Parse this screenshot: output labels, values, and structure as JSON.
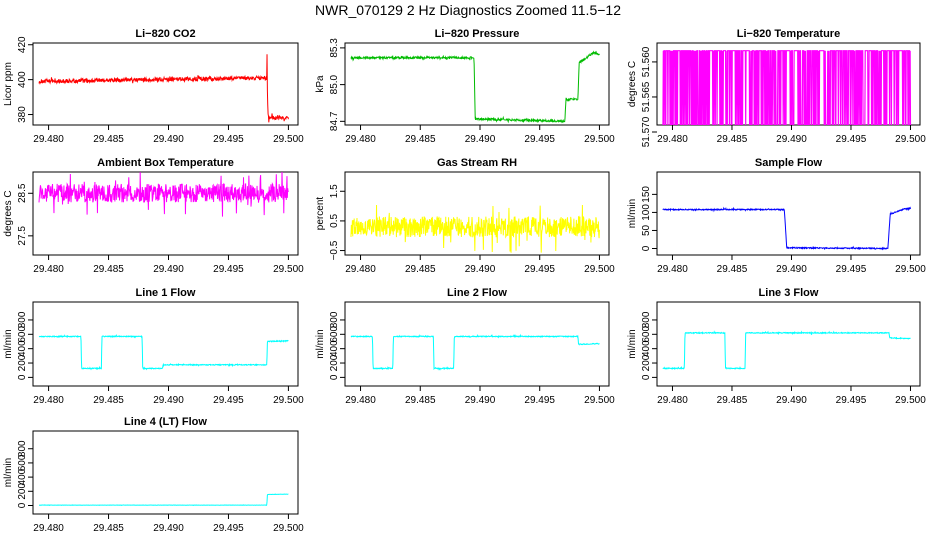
{
  "page_title": "NWR_070129  2 Hz Diagnostics Zoomed 11.5−12",
  "colors": {
    "red": "#ff0000",
    "green": "#00bb00",
    "magenta": "#ff00ff",
    "yellow": "#ffff00",
    "blue": "#0000ff",
    "cyan": "#00ffff"
  },
  "chart_data": [
    {
      "type": "line",
      "title": "Li−820 CO2",
      "ylabel": "Licor ppm",
      "color": "#ff0000",
      "xlim": [
        29.4787,
        29.5008
      ],
      "ylim": [
        374,
        421
      ],
      "xticks": [
        29.48,
        29.485,
        29.49,
        29.495,
        29.5
      ],
      "xtick_labels": [
        "29.480",
        "29.485",
        "29.490",
        "29.495",
        "29.500"
      ],
      "yticks": [
        380,
        400,
        420
      ],
      "ytick_labels": [
        "380",
        "400",
        "420"
      ],
      "style": "noisy",
      "noise": 1.2,
      "series": [
        {
          "x": [
            29.4792,
            29.4982,
            29.49822,
            29.49825,
            29.4983,
            29.49835,
            29.5
          ],
          "y": [
            399,
            401,
            418,
            392,
            380,
            378,
            378
          ]
        }
      ]
    },
    {
      "type": "line",
      "title": "Li−820 Pressure",
      "ylabel": "kPa",
      "color": "#00bb00",
      "xlim": [
        29.4787,
        29.5008
      ],
      "ylim": [
        84.67,
        85.34
      ],
      "xticks": [
        29.48,
        29.485,
        29.49,
        29.495,
        29.5
      ],
      "xtick_labels": [
        "29.480",
        "29.485",
        "29.490",
        "29.495",
        "29.500"
      ],
      "yticks": [
        84.7,
        85.0,
        85.3
      ],
      "ytick_labels": [
        "84.7",
        "85.0",
        "85.3"
      ],
      "style": "noisy",
      "noise": 0.008,
      "series": [
        {
          "x": [
            29.4792,
            29.4895,
            29.4896,
            29.4971,
            29.4972,
            29.4982,
            29.4983,
            29.4995,
            29.5
          ],
          "y": [
            85.22,
            85.22,
            84.72,
            84.7,
            84.88,
            84.88,
            85.18,
            85.26,
            85.25
          ]
        }
      ]
    },
    {
      "type": "line",
      "title": "Li−820 Temperature",
      "ylabel": "degrees C",
      "color": "#ff00ff",
      "xlim": [
        29.4787,
        29.5008
      ],
      "ylim": [
        51.569,
        51.5573
      ],
      "ylim_note": "discrete toggling between two values",
      "xticks": [
        29.48,
        29.485,
        29.49,
        29.495,
        29.5
      ],
      "xtick_labels": [
        "29.480",
        "29.485",
        "29.490",
        "29.495",
        "29.500"
      ],
      "yticks": [
        51.57,
        51.565,
        51.56
      ],
      "ytick_labels": [
        "51.570",
        "51.565",
        "51.560"
      ],
      "style": "toggle",
      "levels": [
        51.5584,
        51.5692
      ],
      "series": [
        {
          "x": [
            29.4792,
            29.5
          ],
          "y": [
            51.5584,
            51.5584
          ]
        }
      ]
    },
    {
      "type": "line",
      "title": "Ambient Box Temperature",
      "ylabel": "degrees C",
      "color": "#ff00ff",
      "xlim": [
        29.4787,
        29.5008
      ],
      "ylim": [
        27.05,
        29.0
      ],
      "xticks": [
        29.48,
        29.485,
        29.49,
        29.495,
        29.5
      ],
      "xtick_labels": [
        "29.480",
        "29.485",
        "29.490",
        "29.495",
        "29.500"
      ],
      "yticks": [
        27.5,
        28.5
      ],
      "ytick_labels": [
        "27.5",
        "28.5"
      ],
      "style": "noisy",
      "noise": 0.22,
      "series": [
        {
          "x": [
            29.4792,
            29.5
          ],
          "y": [
            28.5,
            28.5
          ]
        }
      ]
    },
    {
      "type": "line",
      "title": "Gas Stream RH",
      "ylabel": "percent",
      "color": "#ffff00",
      "xlim": [
        29.4787,
        29.5008
      ],
      "ylim": [
        -0.65,
        2.15
      ],
      "xticks": [
        29.48,
        29.485,
        29.49,
        29.495,
        29.5
      ],
      "xtick_labels": [
        "29.480",
        "29.485",
        "29.490",
        "29.495",
        "29.500"
      ],
      "yticks": [
        -0.5,
        0.5,
        1.5
      ],
      "ytick_labels": [
        "−0.5",
        "0.5",
        "1.5"
      ],
      "style": "noisy",
      "noise": 0.35,
      "series": [
        {
          "x": [
            29.4792,
            29.5
          ],
          "y": [
            0.3,
            0.3
          ]
        }
      ]
    },
    {
      "type": "line",
      "title": "Sample Flow",
      "ylabel": "ml/min",
      "color": "#0000ff",
      "xlim": [
        29.4787,
        29.5008
      ],
      "ylim": [
        -18,
        212
      ],
      "xticks": [
        29.48,
        29.485,
        29.49,
        29.495,
        29.5
      ],
      "xtick_labels": [
        "29.480",
        "29.485",
        "29.490",
        "29.495",
        "29.500"
      ],
      "yticks": [
        0,
        50,
        100,
        150
      ],
      "ytick_labels": [
        "0",
        "50",
        "100",
        "150"
      ],
      "style": "noisy",
      "noise": 1.5,
      "series": [
        {
          "x": [
            29.4792,
            29.4894,
            29.4896,
            29.4981,
            29.4983,
            29.4995,
            29.5
          ],
          "y": [
            108,
            108,
            2,
            0,
            95,
            110,
            112
          ]
        }
      ]
    },
    {
      "type": "line",
      "title": "Line 1 Flow",
      "ylabel": "ml/min",
      "color": "#00ffff",
      "xlim": [
        29.4787,
        29.5008
      ],
      "ylim": [
        -120,
        1050
      ],
      "xticks": [
        29.48,
        29.485,
        29.49,
        29.495,
        29.5
      ],
      "xtick_labels": [
        "29.480",
        "29.485",
        "29.490",
        "29.495",
        "29.500"
      ],
      "yticks": [
        0,
        200,
        400,
        600,
        800
      ],
      "ytick_labels": [
        "0",
        "200",
        "400",
        "600",
        "800"
      ],
      "style": "noisy",
      "noise": 6,
      "series": [
        {
          "x": [
            29.4792,
            29.4827,
            29.48275,
            29.4844,
            29.48445,
            29.4878,
            29.48785,
            29.4895,
            29.48955,
            29.4982,
            29.49825,
            29.5
          ],
          "y": [
            570,
            570,
            125,
            125,
            570,
            570,
            125,
            125,
            175,
            175,
            500,
            510
          ]
        }
      ]
    },
    {
      "type": "line",
      "title": "Line 2 Flow",
      "ylabel": "ml/min",
      "color": "#00ffff",
      "xlim": [
        29.4787,
        29.5008
      ],
      "ylim": [
        -120,
        1050
      ],
      "xticks": [
        29.48,
        29.485,
        29.49,
        29.495,
        29.5
      ],
      "xtick_labels": [
        "29.480",
        "29.485",
        "29.490",
        "29.495",
        "29.500"
      ],
      "yticks": [
        0,
        200,
        400,
        600,
        800
      ],
      "ytick_labels": [
        "0",
        "200",
        "400",
        "600",
        "800"
      ],
      "style": "noisy",
      "noise": 6,
      "series": [
        {
          "x": [
            29.4792,
            29.481,
            29.48105,
            29.4827,
            29.48275,
            29.4861,
            29.48615,
            29.4878,
            29.48785,
            29.4982,
            29.49825,
            29.5
          ],
          "y": [
            570,
            570,
            125,
            125,
            570,
            570,
            125,
            125,
            570,
            570,
            460,
            470
          ]
        }
      ]
    },
    {
      "type": "line",
      "title": "Line 3 Flow",
      "ylabel": "ml/min",
      "color": "#00ffff",
      "xlim": [
        29.4787,
        29.5008
      ],
      "ylim": [
        -120,
        1050
      ],
      "xticks": [
        29.48,
        29.485,
        29.49,
        29.495,
        29.5
      ],
      "xtick_labels": [
        "29.480",
        "29.485",
        "29.490",
        "29.495",
        "29.500"
      ],
      "yticks": [
        0,
        200,
        400,
        600,
        800
      ],
      "ytick_labels": [
        "0",
        "200",
        "400",
        "600",
        "800"
      ],
      "style": "noisy",
      "noise": 6,
      "series": [
        {
          "x": [
            29.4792,
            29.481,
            29.48105,
            29.4844,
            29.48445,
            29.4861,
            29.48615,
            29.4982,
            29.49825,
            29.5
          ],
          "y": [
            125,
            125,
            620,
            620,
            125,
            125,
            620,
            620,
            550,
            540
          ]
        }
      ]
    },
    {
      "type": "line",
      "title": "Line 4 (LT) Flow",
      "ylabel": "ml/min",
      "color": "#00ffff",
      "xlim": [
        29.4787,
        29.5008
      ],
      "ylim": [
        -120,
        1050
      ],
      "xticks": [
        29.48,
        29.485,
        29.49,
        29.495,
        29.5
      ],
      "xtick_labels": [
        "29.480",
        "29.485",
        "29.490",
        "29.495",
        "29.500"
      ],
      "yticks": [
        0,
        200,
        400,
        600,
        800
      ],
      "ytick_labels": [
        "0",
        "200",
        "400",
        "600",
        "800"
      ],
      "style": "noisy",
      "noise": 1.5,
      "series": [
        {
          "x": [
            29.4792,
            29.4982,
            29.49825,
            29.5
          ],
          "y": [
            5,
            5,
            155,
            160
          ]
        }
      ]
    }
  ]
}
